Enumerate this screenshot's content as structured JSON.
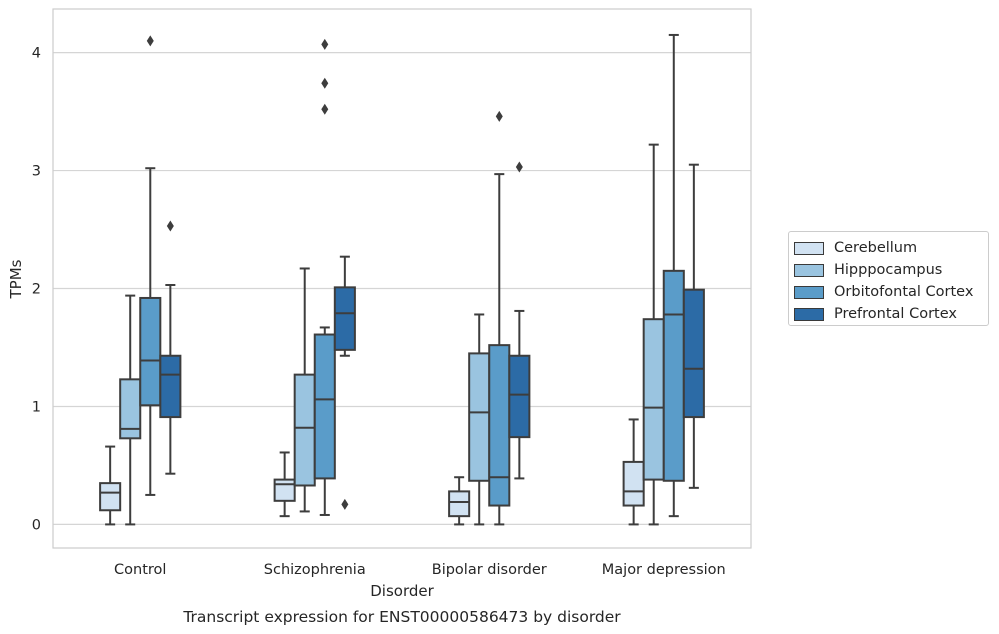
{
  "chart_data": {
    "type": "box",
    "title": "Transcript expression for ENST00000586473 by disorder",
    "xlabel": "Disorder",
    "ylabel": "TPMs",
    "ylim": [
      -0.2,
      4.37
    ],
    "yticks": [
      "0",
      "1",
      "2",
      "3",
      "4"
    ],
    "ytick_values": [
      0,
      1,
      2,
      3,
      4
    ],
    "grid": "horizontal",
    "legend_position": "right",
    "categories": [
      "Control",
      "Schizophrenia",
      "Bipolar disorder",
      "Major depression"
    ],
    "series": [
      {
        "name": "Cerebellum",
        "color": "#d1e2f2",
        "boxes": [
          {
            "whisker_low": 0.0,
            "q1": 0.12,
            "median": 0.27,
            "q3": 0.35,
            "whisker_high": 0.66,
            "outliers": []
          },
          {
            "whisker_low": 0.07,
            "q1": 0.2,
            "median": 0.34,
            "q3": 0.38,
            "whisker_high": 0.61,
            "outliers": []
          },
          {
            "whisker_low": 0.0,
            "q1": 0.07,
            "median": 0.19,
            "q3": 0.28,
            "whisker_high": 0.4,
            "outliers": []
          },
          {
            "whisker_low": 0.0,
            "q1": 0.16,
            "median": 0.28,
            "q3": 0.53,
            "whisker_high": 0.89,
            "outliers": []
          }
        ]
      },
      {
        "name": "Hipppocampus",
        "color": "#9ac4e0",
        "boxes": [
          {
            "whisker_low": 0.0,
            "q1": 0.73,
            "median": 0.81,
            "q3": 1.23,
            "whisker_high": 1.94,
            "outliers": []
          },
          {
            "whisker_low": 0.11,
            "q1": 0.33,
            "median": 0.82,
            "q3": 1.27,
            "whisker_high": 2.17,
            "outliers": []
          },
          {
            "whisker_low": 0.0,
            "q1": 0.37,
            "median": 0.95,
            "q3": 1.45,
            "whisker_high": 1.78,
            "outliers": []
          },
          {
            "whisker_low": 0.0,
            "q1": 0.38,
            "median": 0.99,
            "q3": 1.74,
            "whisker_high": 3.22,
            "outliers": []
          }
        ]
      },
      {
        "name": "Orbitofontal Cortex",
        "color": "#5a9cc9",
        "boxes": [
          {
            "whisker_low": 0.25,
            "q1": 1.01,
            "median": 1.39,
            "q3": 1.92,
            "whisker_high": 3.02,
            "outliers": [
              4.1
            ]
          },
          {
            "whisker_low": 0.08,
            "q1": 0.39,
            "median": 1.06,
            "q3": 1.61,
            "whisker_high": 1.67,
            "outliers": [
              3.52,
              3.74,
              4.07
            ]
          },
          {
            "whisker_low": 0.0,
            "q1": 0.16,
            "median": 0.4,
            "q3": 1.52,
            "whisker_high": 2.97,
            "outliers": [
              3.46
            ]
          },
          {
            "whisker_low": 0.07,
            "q1": 0.37,
            "median": 1.78,
            "q3": 2.15,
            "whisker_high": 4.15,
            "outliers": []
          }
        ]
      },
      {
        "name": "Prefrontal Cortex",
        "color": "#2c6ba6",
        "boxes": [
          {
            "whisker_low": 0.43,
            "q1": 0.91,
            "median": 1.27,
            "q3": 1.43,
            "whisker_high": 2.03,
            "outliers": [
              2.53
            ]
          },
          {
            "whisker_low": 1.43,
            "q1": 1.48,
            "median": 1.79,
            "q3": 2.01,
            "whisker_high": 2.27,
            "outliers": [
              0.17
            ]
          },
          {
            "whisker_low": 0.39,
            "q1": 0.74,
            "median": 1.1,
            "q3": 1.43,
            "whisker_high": 1.81,
            "outliers": [
              3.03
            ]
          },
          {
            "whisker_low": 0.31,
            "q1": 0.91,
            "median": 1.32,
            "q3": 1.99,
            "whisker_high": 3.05,
            "outliers": []
          }
        ]
      }
    ]
  }
}
